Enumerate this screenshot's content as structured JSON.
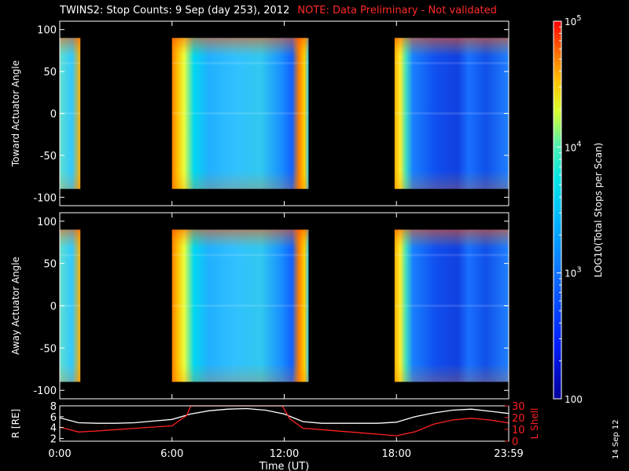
{
  "header": {
    "title": "TWINS2: Stop Counts:  9 Sep (day 253), 2012",
    "note": "NOTE: Data Preliminary - Not validated"
  },
  "stamp": "14 Sep 12",
  "colors": {
    "background": "#000000",
    "foreground": "#ffffff",
    "note": "#ff2020",
    "l_shell": "#ff2020",
    "r_line": "#ffffff"
  },
  "chart_data": [
    {
      "type": "heatmap",
      "panel": "toward",
      "ylabel": "Toward Actuator Angle",
      "ylim": [
        -110,
        110
      ],
      "yticks": [
        "100",
        "50",
        "0",
        "-50",
        "-100"
      ],
      "xlim": [
        0,
        24
      ],
      "data_time_blocks": [
        [
          0,
          1.1
        ],
        [
          6.0,
          13.3
        ],
        [
          17.9,
          24.0
        ]
      ],
      "angle_range": [
        -90,
        90
      ],
      "colorbar": {
        "label": "LOG10(Total Stops per Scan)",
        "range": [
          100,
          100000
        ],
        "ticks": [
          "10^5",
          "10^4",
          "10^3",
          "100"
        ]
      }
    },
    {
      "type": "heatmap",
      "panel": "away",
      "ylabel": "Away Actuator Angle",
      "ylim": [
        -110,
        110
      ],
      "yticks": [
        "100",
        "50",
        "0",
        "-50",
        "-100"
      ],
      "xlim": [
        0,
        24
      ],
      "data_time_blocks": [
        [
          0,
          1.1
        ],
        [
          6.0,
          13.3
        ],
        [
          17.9,
          24.0
        ]
      ],
      "angle_range": [
        -90,
        90
      ]
    },
    {
      "type": "line",
      "panel": "orbit",
      "xlabel": "Time (UT)",
      "xticks": [
        "0:00",
        "6:00",
        "12:00",
        "18:00",
        "23:59"
      ],
      "xtick_hours": [
        0,
        6,
        12,
        18,
        24
      ],
      "ylabel_left": "R [RE]",
      "ylabel_right": "L Shell",
      "ylim_left": [
        1.5,
        8
      ],
      "yticks_left": [
        "8",
        "6",
        "4",
        "2"
      ],
      "ylim_right": [
        0,
        30
      ],
      "yticks_right": [
        "30",
        "20",
        "10",
        "0"
      ],
      "series": [
        {
          "name": "R",
          "axis": "left",
          "x": [
            0,
            1,
            2,
            3,
            4,
            5,
            6,
            7,
            8,
            9,
            10,
            11,
            12,
            13,
            14,
            15,
            16,
            17,
            18,
            19,
            20,
            21,
            22,
            23,
            24
          ],
          "y": [
            5.8,
            4.9,
            4.8,
            4.8,
            4.9,
            5.2,
            5.5,
            6.5,
            7.1,
            7.4,
            7.5,
            7.2,
            6.5,
            5.1,
            4.8,
            4.8,
            4.8,
            4.8,
            5.0,
            6.0,
            6.7,
            7.2,
            7.4,
            7.0,
            6.6
          ]
        },
        {
          "name": "L Shell",
          "axis": "right",
          "x": [
            0,
            1,
            2,
            3,
            4,
            5,
            6,
            6.8,
            7.0,
            11.9,
            12.3,
            13.0,
            14,
            15,
            16,
            17,
            18,
            19,
            20,
            21,
            22,
            23,
            24
          ],
          "y": [
            12.0,
            7.8,
            8.7,
            9.8,
            10.9,
            12.0,
            13.0,
            22.0,
            30.0,
            30.0,
            19.0,
            11.0,
            9.8,
            8.5,
            7.2,
            5.9,
            4.6,
            8.0,
            14.5,
            18.0,
            19.5,
            18.0,
            15.5
          ]
        }
      ]
    }
  ]
}
